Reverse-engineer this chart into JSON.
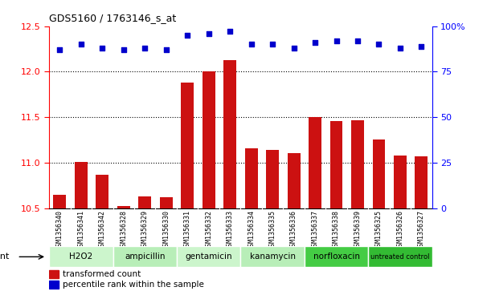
{
  "title": "GDS5160 / 1763146_s_at",
  "samples": [
    "GSM1356340",
    "GSM1356341",
    "GSM1356342",
    "GSM1356328",
    "GSM1356329",
    "GSM1356330",
    "GSM1356331",
    "GSM1356332",
    "GSM1356333",
    "GSM1356334",
    "GSM1356335",
    "GSM1356336",
    "GSM1356337",
    "GSM1356338",
    "GSM1356339",
    "GSM1356325",
    "GSM1356326",
    "GSM1356327"
  ],
  "transformed_count": [
    10.65,
    11.01,
    10.87,
    10.52,
    10.63,
    10.62,
    11.88,
    12.0,
    12.13,
    11.16,
    11.14,
    11.1,
    11.5,
    11.46,
    11.47,
    11.25,
    11.08,
    11.07
  ],
  "percentile_rank": [
    87,
    90,
    88,
    87,
    88,
    87,
    95,
    96,
    97,
    90,
    90,
    88,
    91,
    92,
    92,
    90,
    88,
    89
  ],
  "agents": [
    {
      "label": "H2O2",
      "start": 0,
      "end": 3,
      "color": "#ccf5cc"
    },
    {
      "label": "ampicillin",
      "start": 3,
      "end": 6,
      "color": "#b8eeb8"
    },
    {
      "label": "gentamicin",
      "start": 6,
      "end": 9,
      "color": "#ccf5cc"
    },
    {
      "label": "kanamycin",
      "start": 9,
      "end": 12,
      "color": "#b8eeb8"
    },
    {
      "label": "norfloxacin",
      "start": 12,
      "end": 15,
      "color": "#44cc44"
    },
    {
      "label": "untreated control",
      "start": 15,
      "end": 18,
      "color": "#33bb33"
    }
  ],
  "ylim_left": [
    10.5,
    12.5
  ],
  "ylim_right": [
    0,
    100
  ],
  "bar_color": "#cc1111",
  "dot_color": "#0000cc",
  "plot_bg": "#ffffff",
  "xtick_bg": "#cccccc",
  "legend_bar_label": "transformed count",
  "legend_dot_label": "percentile rank within the sample",
  "right_ticks": [
    0,
    25,
    50,
    75,
    100
  ],
  "right_tick_labels": [
    "0",
    "25",
    "50",
    "75",
    "100%"
  ]
}
